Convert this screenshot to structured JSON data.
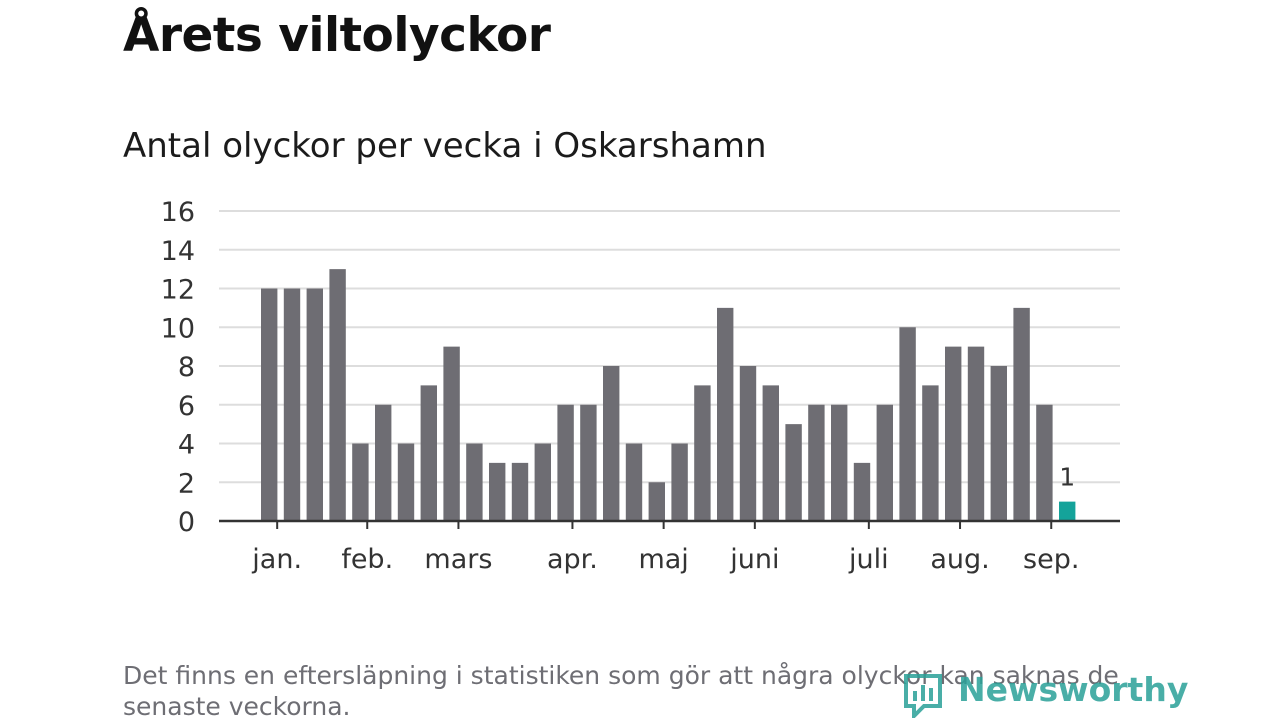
{
  "title": "Årets viltolyckor",
  "subtitle": "Antal olyckor per vecka i Oskarshamn",
  "footnote": "Det finns en eftersläpning i statistiken som gör att några olyckor kan saknas de senaste veckorna.",
  "brand": {
    "name": "Newsworthy",
    "icon": "newsworthy-logo-icon"
  },
  "colors": {
    "bar": "#6e6d73",
    "highlight": "#14a39a",
    "grid": "#dddddd",
    "axis": "#333333"
  },
  "chart_data": {
    "type": "bar",
    "values": [
      12,
      12,
      12,
      13,
      4,
      6,
      4,
      7,
      9,
      4,
      3,
      3,
      4,
      6,
      6,
      8,
      4,
      2,
      4,
      7,
      11,
      8,
      7,
      5,
      6,
      6,
      3,
      6,
      10,
      7,
      9,
      9,
      8,
      11,
      6,
      1
    ],
    "highlight_index": 35,
    "data_labels": [
      {
        "index": 35,
        "text": "1"
      }
    ],
    "month_labels": [
      {
        "label": "jan.",
        "bar_index": 0.35
      },
      {
        "label": "feb.",
        "bar_index": 4.3
      },
      {
        "label": "mars",
        "bar_index": 8.3
      },
      {
        "label": "apr.",
        "bar_index": 13.3
      },
      {
        "label": "maj",
        "bar_index": 17.3
      },
      {
        "label": "juni",
        "bar_index": 21.3
      },
      {
        "label": "juli",
        "bar_index": 26.3
      },
      {
        "label": "aug.",
        "bar_index": 30.3
      },
      {
        "label": "sep.",
        "bar_index": 34.3
      }
    ],
    "ylim": [
      0,
      16
    ],
    "yticks": [
      0,
      2,
      4,
      6,
      8,
      10,
      12,
      14,
      16
    ],
    "grid": true,
    "xlabel": "",
    "ylabel": ""
  }
}
